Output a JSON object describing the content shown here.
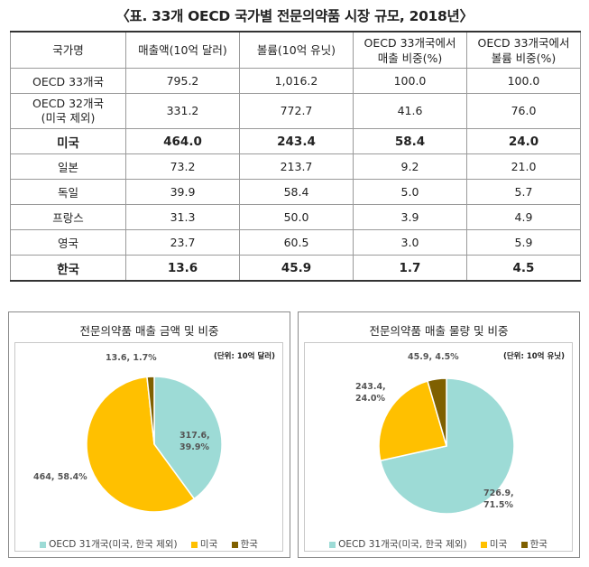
{
  "title": "〈표. 33개 OECD 국가별 전문의약품 시장 규모, 2018년〉",
  "table": {
    "headers": [
      "국가명",
      "매출액(10억 달러)",
      "볼륨(10억 유닛)",
      "OECD 33개국에서\n매출 비중(%)",
      "OECD 33개국에서\n볼륨 비중(%)"
    ],
    "rows": [
      {
        "name": "OECD 33개국",
        "sales": "795.2",
        "volume": "1,016.2",
        "sales_share": "100.0",
        "volume_share": "100.0"
      },
      {
        "name": "OECD 32개국\n(미국 제외)",
        "sales": "331.2",
        "volume": "772.7",
        "sales_share": "41.6",
        "volume_share": "76.0"
      },
      {
        "name": "미국",
        "sales": "464.0",
        "volume": "243.4",
        "sales_share": "58.4",
        "volume_share": "24.0"
      },
      {
        "name": "일본",
        "sales": "73.2",
        "volume": "213.7",
        "sales_share": "9.2",
        "volume_share": "21.0"
      },
      {
        "name": "독일",
        "sales": "39.9",
        "volume": "58.4",
        "sales_share": "5.0",
        "volume_share": "5.7"
      },
      {
        "name": "프랑스",
        "sales": "31.3",
        "volume": "50.0",
        "sales_share": "3.9",
        "volume_share": "4.9"
      },
      {
        "name": "영국",
        "sales": "23.7",
        "volume": "60.5",
        "sales_share": "3.0",
        "volume_share": "5.9"
      },
      {
        "name": "한국",
        "sales": "13.6",
        "volume": "45.9",
        "sales_share": "1.7",
        "volume_share": "4.5"
      }
    ]
  },
  "colors": {
    "oecd31": "#9ddbd6",
    "us": "#ffc000",
    "korea": "#7f6000"
  },
  "chart_data": [
    {
      "type": "pie",
      "title": "전문의약품 매출 금액 및 비중",
      "unit": "(단위: 10억 달러)",
      "categories": [
        "OECD 31개국(미국, 한국 제외)",
        "미국",
        "한국"
      ],
      "values": [
        317.6,
        464,
        13.6
      ],
      "percents": [
        39.9,
        58.4,
        1.7
      ],
      "data_labels": [
        "317.6,\n39.9%",
        "464, 58.4%",
        "13.6, 1.7%"
      ],
      "legend": "bottom"
    },
    {
      "type": "pie",
      "title": "전문의약품 매출 물량 및 비중",
      "unit": "(단위: 10억 유닛)",
      "categories": [
        "OECD 31개국(미국, 한국 제외)",
        "미국",
        "한국"
      ],
      "values": [
        726.9,
        243.4,
        45.9
      ],
      "percents": [
        71.5,
        24.0,
        4.5
      ],
      "data_labels": [
        "726.9,\n71.5%",
        "243.4,\n24.0%",
        "45.9, 4.5%"
      ],
      "legend": "bottom"
    }
  ]
}
